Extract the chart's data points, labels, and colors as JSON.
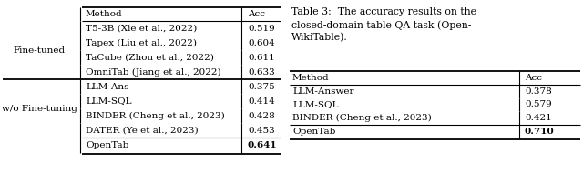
{
  "table1_header": [
    "Method",
    "Acc"
  ],
  "table1_groups": [
    {
      "group_label": "Fine-tuned",
      "rows": [
        [
          "T5-3B (Xie et al., 2022)",
          "0.519"
        ],
        [
          "Tapex (Liu et al., 2022)",
          "0.604"
        ],
        [
          "TaCube (Zhou et al., 2022)",
          "0.611"
        ],
        [
          "OmniTab (Jiang et al., 2022)",
          "0.633"
        ]
      ]
    },
    {
      "group_label": "w/o Fine-tuning",
      "rows": [
        [
          "LLM-Ans",
          "0.375"
        ],
        [
          "LLM-SQL",
          "0.414"
        ],
        [
          "BINDER (Cheng et al., 2023)",
          "0.428"
        ],
        [
          "DATER (Ye et al., 2023)",
          "0.453"
        ]
      ]
    }
  ],
  "table1_opentab": [
    "OpenTab",
    "0.641"
  ],
  "table2_caption_bold": "Table 3:",
  "table2_caption_rest": "  The accuracy results on the closed-domain table QA task (Open-WikiTable).",
  "table2_header": [
    "Method",
    "Acc"
  ],
  "table2_rows": [
    [
      "LLM-Answer",
      "0.378"
    ],
    [
      "LLM-SQL",
      "0.579"
    ],
    [
      "BINDER (Cheng et al., 2023)",
      "0.421"
    ]
  ],
  "table2_opentab": [
    "OpenTab",
    "0.710"
  ],
  "bg_color": "#ffffff",
  "text_color": "#000000",
  "font_size": 7.5
}
